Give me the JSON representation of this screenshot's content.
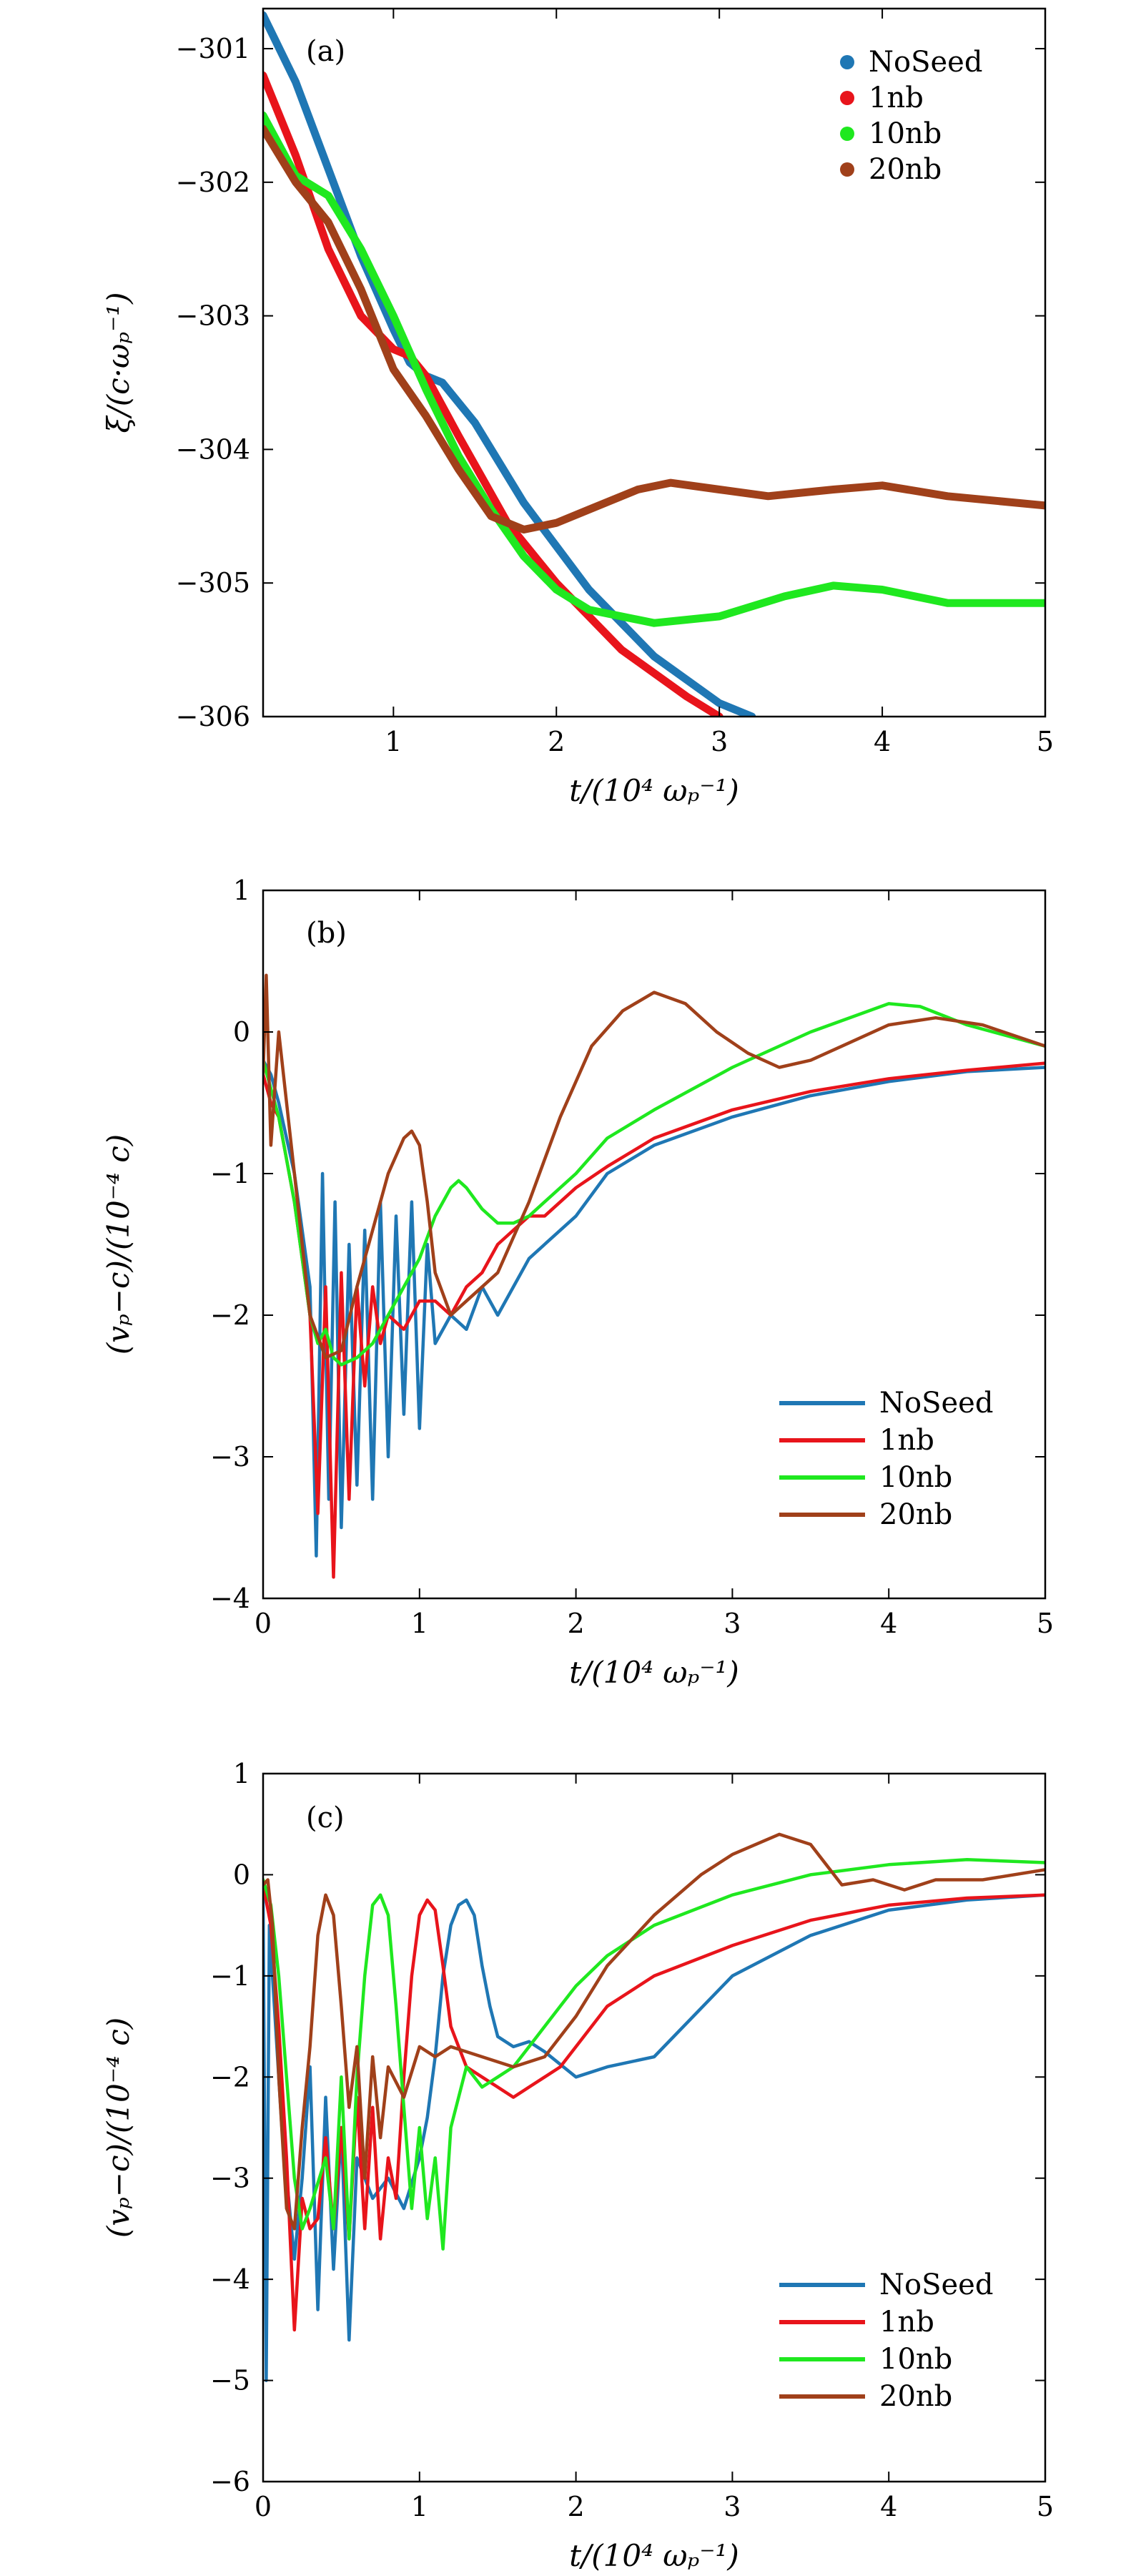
{
  "chart_data": [
    {
      "type": "line",
      "style": "markers",
      "panel_label": "(a)",
      "xlabel": "t/(10⁴ ωₚ⁻¹)",
      "ylabel": "ξ/(c·ωₚ⁻¹)",
      "xlim": [
        0.2,
        5
      ],
      "ylim": [
        -306,
        -300.7
      ],
      "xticks": [
        1,
        2,
        3,
        4,
        5
      ],
      "yticks": [
        -306,
        -305,
        -304,
        -303,
        -302,
        -301
      ],
      "xtick_labels": [
        "1",
        "2",
        "3",
        "4",
        "5"
      ],
      "ytick_labels": [
        "−306",
        "−305",
        "−304",
        "−303",
        "−302",
        "−301"
      ],
      "legend_position": "top-right",
      "series": [
        {
          "name": "NoSeed",
          "color": "#1f77b4",
          "x": [
            0.2,
            0.4,
            0.6,
            0.8,
            1.0,
            1.1,
            1.2,
            1.3,
            1.5,
            1.8,
            2.2,
            2.6,
            3.0,
            3.2
          ],
          "y": [
            -300.75,
            -301.25,
            -301.9,
            -302.55,
            -303.1,
            -303.35,
            -303.45,
            -303.5,
            -303.8,
            -304.4,
            -305.05,
            -305.55,
            -305.9,
            -306.0
          ]
        },
        {
          "name": "1nb",
          "color": "#e8141b",
          "x": [
            0.2,
            0.4,
            0.6,
            0.8,
            1.0,
            1.1,
            1.2,
            1.4,
            1.7,
            2.0,
            2.4,
            2.8,
            3.0
          ],
          "y": [
            -301.2,
            -301.8,
            -302.5,
            -303.0,
            -303.25,
            -303.3,
            -303.45,
            -303.9,
            -304.55,
            -305.0,
            -305.5,
            -305.85,
            -306.0
          ]
        },
        {
          "name": "10nb",
          "color": "#1fe81f",
          "x": [
            0.2,
            0.4,
            0.6,
            0.8,
            1.0,
            1.2,
            1.4,
            1.6,
            1.8,
            2.0,
            2.2,
            2.6,
            3.0,
            3.4,
            3.7,
            4.0,
            4.4,
            5.0
          ],
          "y": [
            -301.5,
            -301.95,
            -302.1,
            -302.5,
            -303.0,
            -303.55,
            -304.05,
            -304.45,
            -304.8,
            -305.05,
            -305.2,
            -305.3,
            -305.25,
            -305.1,
            -305.02,
            -305.05,
            -305.15,
            -305.15
          ]
        },
        {
          "name": "20nb",
          "color": "#a0401a",
          "x": [
            0.2,
            0.4,
            0.6,
            0.8,
            1.0,
            1.2,
            1.4,
            1.6,
            1.8,
            2.0,
            2.2,
            2.5,
            2.7,
            3.0,
            3.3,
            3.7,
            4.0,
            4.4,
            5.0
          ],
          "y": [
            -301.6,
            -302.0,
            -302.3,
            -302.8,
            -303.4,
            -303.75,
            -304.15,
            -304.5,
            -304.6,
            -304.55,
            -304.45,
            -304.3,
            -304.25,
            -304.3,
            -304.35,
            -304.3,
            -304.27,
            -304.35,
            -304.42
          ]
        }
      ]
    },
    {
      "type": "line",
      "panel_label": "(b)",
      "xlabel": "t/(10⁴ ωₚ⁻¹)",
      "ylabel": "(vₚ−c)/(10⁻⁴ c)",
      "xlim": [
        0,
        5
      ],
      "ylim": [
        -4,
        1
      ],
      "xticks": [
        0,
        1,
        2,
        3,
        4,
        5
      ],
      "yticks": [
        -4,
        -3,
        -2,
        -1,
        0,
        1
      ],
      "xtick_labels": [
        "0",
        "1",
        "2",
        "3",
        "4",
        "5"
      ],
      "ytick_labels": [
        "−4",
        "−3",
        "−2",
        "−1",
        "0",
        "1"
      ],
      "legend_position": "bottom-right",
      "series": [
        {
          "name": "NoSeed",
          "color": "#1f77b4",
          "x": [
            0.0,
            0.05,
            0.1,
            0.2,
            0.3,
            0.34,
            0.38,
            0.42,
            0.46,
            0.5,
            0.55,
            0.6,
            0.65,
            0.7,
            0.75,
            0.8,
            0.85,
            0.9,
            0.95,
            1.0,
            1.05,
            1.1,
            1.2,
            1.3,
            1.4,
            1.5,
            1.6,
            1.7,
            1.8,
            2.0,
            2.2,
            2.5,
            3.0,
            3.5,
            4.0,
            4.5,
            5.0
          ],
          "y": [
            -0.2,
            -0.3,
            -0.5,
            -1.0,
            -1.8,
            -3.7,
            -1.0,
            -3.3,
            -1.2,
            -3.5,
            -1.5,
            -3.2,
            -1.4,
            -3.3,
            -1.2,
            -3.0,
            -1.3,
            -2.7,
            -1.2,
            -2.8,
            -1.5,
            -2.2,
            -2.0,
            -2.1,
            -1.8,
            -2.0,
            -1.8,
            -1.6,
            -1.5,
            -1.3,
            -1.0,
            -0.8,
            -0.6,
            -0.45,
            -0.35,
            -0.28,
            -0.25
          ]
        },
        {
          "name": "1nb",
          "color": "#e8141b",
          "x": [
            0.0,
            0.05,
            0.1,
            0.2,
            0.3,
            0.35,
            0.4,
            0.45,
            0.5,
            0.55,
            0.6,
            0.65,
            0.7,
            0.75,
            0.8,
            0.9,
            1.0,
            1.1,
            1.2,
            1.3,
            1.4,
            1.5,
            1.6,
            1.7,
            1.8,
            2.0,
            2.2,
            2.5,
            3.0,
            3.5,
            4.0,
            4.5,
            5.0
          ],
          "y": [
            -0.3,
            -0.5,
            -0.6,
            -1.2,
            -2.0,
            -3.4,
            -1.8,
            -3.85,
            -1.7,
            -3.3,
            -1.8,
            -2.5,
            -1.8,
            -2.2,
            -2.0,
            -2.1,
            -1.9,
            -1.9,
            -2.0,
            -1.8,
            -1.7,
            -1.5,
            -1.4,
            -1.3,
            -1.3,
            -1.1,
            -0.95,
            -0.75,
            -0.55,
            -0.42,
            -0.33,
            -0.27,
            -0.22
          ]
        },
        {
          "name": "10nb",
          "color": "#1fe81f",
          "x": [
            0.0,
            0.05,
            0.1,
            0.2,
            0.3,
            0.35,
            0.4,
            0.45,
            0.5,
            0.6,
            0.7,
            0.8,
            0.9,
            1.0,
            1.1,
            1.2,
            1.25,
            1.3,
            1.4,
            1.5,
            1.6,
            1.7,
            1.8,
            2.0,
            2.2,
            2.5,
            3.0,
            3.5,
            4.0,
            4.2,
            4.5,
            5.0
          ],
          "y": [
            -0.2,
            -0.4,
            -0.6,
            -1.2,
            -2.0,
            -2.2,
            -2.1,
            -2.3,
            -2.35,
            -2.3,
            -2.2,
            -2.0,
            -1.8,
            -1.6,
            -1.3,
            -1.1,
            -1.05,
            -1.1,
            -1.25,
            -1.35,
            -1.35,
            -1.3,
            -1.2,
            -1.0,
            -0.75,
            -0.55,
            -0.25,
            0.0,
            0.2,
            0.18,
            0.05,
            -0.1
          ]
        },
        {
          "name": "20nb",
          "color": "#a0401a",
          "x": [
            0.0,
            0.02,
            0.05,
            0.1,
            0.2,
            0.3,
            0.4,
            0.5,
            0.6,
            0.7,
            0.8,
            0.9,
            0.95,
            1.0,
            1.05,
            1.1,
            1.2,
            1.3,
            1.4,
            1.5,
            1.7,
            1.9,
            2.1,
            2.3,
            2.5,
            2.7,
            2.9,
            3.1,
            3.3,
            3.5,
            3.7,
            4.0,
            4.3,
            4.6,
            5.0
          ],
          "y": [
            -0.3,
            0.4,
            -0.8,
            0.0,
            -1.0,
            -2.0,
            -2.3,
            -2.25,
            -1.8,
            -1.4,
            -1.0,
            -0.75,
            -0.7,
            -0.8,
            -1.2,
            -1.7,
            -2.0,
            -1.9,
            -1.8,
            -1.7,
            -1.2,
            -0.6,
            -0.1,
            0.15,
            0.28,
            0.2,
            0.0,
            -0.15,
            -0.25,
            -0.2,
            -0.1,
            0.05,
            0.1,
            0.05,
            -0.1
          ]
        }
      ]
    },
    {
      "type": "line",
      "panel_label": "(c)",
      "xlabel": "t/(10⁴ ωₚ⁻¹)",
      "ylabel": "(vₚ−c)/(10⁻⁴ c)",
      "xlim": [
        0,
        5
      ],
      "ylim": [
        -6,
        1
      ],
      "xticks": [
        0,
        1,
        2,
        3,
        4,
        5
      ],
      "yticks": [
        -6,
        -5,
        -4,
        -3,
        -2,
        -1,
        0,
        1
      ],
      "xtick_labels": [
        "0",
        "1",
        "2",
        "3",
        "4",
        "5"
      ],
      "ytick_labels": [
        "−6",
        "−5",
        "−4",
        "−3",
        "−2",
        "−1",
        "0",
        "1"
      ],
      "legend_position": "bottom-right",
      "series": [
        {
          "name": "NoSeed",
          "color": "#1f77b4",
          "x": [
            0.0,
            0.02,
            0.04,
            0.08,
            0.12,
            0.2,
            0.25,
            0.3,
            0.35,
            0.4,
            0.45,
            0.5,
            0.55,
            0.6,
            0.7,
            0.8,
            0.9,
            1.0,
            1.05,
            1.1,
            1.15,
            1.2,
            1.25,
            1.3,
            1.35,
            1.4,
            1.45,
            1.5,
            1.6,
            1.7,
            1.8,
            2.0,
            2.2,
            2.5,
            3.0,
            3.5,
            4.0,
            4.5,
            5.0
          ],
          "y": [
            -0.2,
            -5.0,
            -0.5,
            -1.5,
            -2.5,
            -3.8,
            -3.0,
            -1.9,
            -4.3,
            -2.2,
            -3.9,
            -2.5,
            -4.6,
            -2.8,
            -3.2,
            -3.0,
            -3.3,
            -2.8,
            -2.4,
            -1.8,
            -1.0,
            -0.5,
            -0.3,
            -0.25,
            -0.4,
            -0.9,
            -1.3,
            -1.6,
            -1.7,
            -1.65,
            -1.75,
            -2.0,
            -1.9,
            -1.8,
            -1.0,
            -0.6,
            -0.35,
            -0.25,
            -0.2
          ]
        },
        {
          "name": "1nb",
          "color": "#e8141b",
          "x": [
            0.0,
            0.05,
            0.1,
            0.15,
            0.2,
            0.25,
            0.3,
            0.35,
            0.4,
            0.45,
            0.5,
            0.55,
            0.6,
            0.65,
            0.7,
            0.75,
            0.8,
            0.85,
            0.9,
            0.95,
            1.0,
            1.05,
            1.1,
            1.15,
            1.2,
            1.3,
            1.4,
            1.5,
            1.6,
            1.7,
            1.8,
            1.9,
            2.0,
            2.2,
            2.5,
            3.0,
            3.5,
            4.0,
            4.5,
            5.0
          ],
          "y": [
            -0.1,
            -0.5,
            -1.5,
            -2.8,
            -4.5,
            -3.2,
            -3.5,
            -3.4,
            -2.6,
            -3.5,
            -2.5,
            -3.6,
            -2.2,
            -3.5,
            -2.3,
            -3.6,
            -2.8,
            -3.2,
            -2.0,
            -1.0,
            -0.4,
            -0.25,
            -0.35,
            -0.9,
            -1.5,
            -1.9,
            -2.0,
            -2.1,
            -2.2,
            -2.1,
            -2.0,
            -1.9,
            -1.7,
            -1.3,
            -1.0,
            -0.7,
            -0.45,
            -0.3,
            -0.23,
            -0.2
          ]
        },
        {
          "name": "10nb",
          "color": "#1fe81f",
          "x": [
            0.0,
            0.05,
            0.1,
            0.15,
            0.2,
            0.25,
            0.3,
            0.4,
            0.45,
            0.5,
            0.55,
            0.6,
            0.65,
            0.7,
            0.75,
            0.8,
            0.85,
            0.9,
            0.95,
            1.0,
            1.05,
            1.1,
            1.15,
            1.2,
            1.3,
            1.4,
            1.5,
            1.6,
            1.7,
            1.8,
            1.9,
            2.0,
            2.2,
            2.5,
            3.0,
            3.5,
            4.0,
            4.5,
            5.0
          ],
          "y": [
            -0.05,
            -0.3,
            -1.0,
            -2.0,
            -3.0,
            -3.5,
            -3.3,
            -2.8,
            -3.5,
            -2.0,
            -3.6,
            -2.0,
            -1.0,
            -0.3,
            -0.2,
            -0.4,
            -1.3,
            -2.3,
            -3.3,
            -2.5,
            -3.4,
            -2.8,
            -3.7,
            -2.5,
            -1.9,
            -2.1,
            -2.0,
            -1.9,
            -1.7,
            -1.5,
            -1.3,
            -1.1,
            -0.8,
            -0.5,
            -0.2,
            0.0,
            0.1,
            0.15,
            0.12
          ]
        },
        {
          "name": "20nb",
          "color": "#a0401a",
          "x": [
            0.0,
            0.03,
            0.06,
            0.1,
            0.15,
            0.2,
            0.25,
            0.3,
            0.35,
            0.4,
            0.45,
            0.5,
            0.55,
            0.6,
            0.65,
            0.7,
            0.75,
            0.8,
            0.9,
            1.0,
            1.1,
            1.2,
            1.4,
            1.6,
            1.8,
            2.0,
            2.2,
            2.5,
            2.8,
            3.0,
            3.3,
            3.5,
            3.7,
            3.9,
            4.1,
            4.3,
            4.6,
            5.0
          ],
          "y": [
            -0.1,
            -0.05,
            -0.5,
            -2.0,
            -3.3,
            -3.5,
            -2.5,
            -1.7,
            -0.6,
            -0.2,
            -0.4,
            -1.3,
            -2.3,
            -1.7,
            -3.0,
            -1.8,
            -2.6,
            -1.9,
            -2.2,
            -1.7,
            -1.8,
            -1.7,
            -1.8,
            -1.9,
            -1.8,
            -1.4,
            -0.9,
            -0.4,
            0.0,
            0.2,
            0.4,
            0.3,
            -0.1,
            -0.05,
            -0.15,
            -0.05,
            -0.05,
            0.05
          ]
        }
      ]
    }
  ]
}
